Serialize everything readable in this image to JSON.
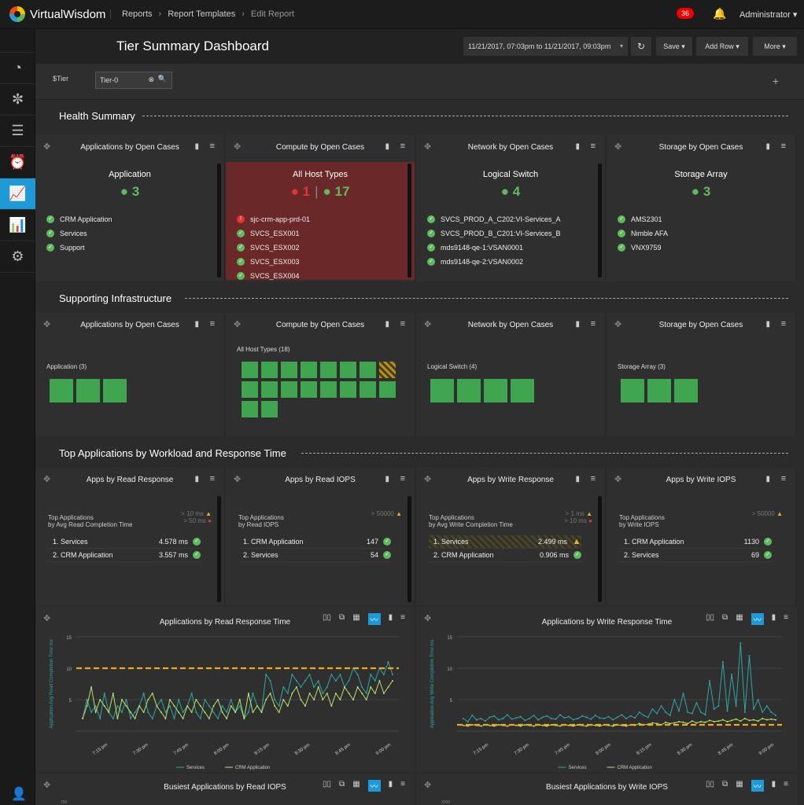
{
  "topbar": {
    "brand": "VirtualWisdom",
    "crumbs": [
      "Reports",
      "Report Templates",
      "Edit Report"
    ],
    "alerts": "36",
    "user": "Administrator"
  },
  "header": {
    "title": "Tier Summary Dashboard",
    "date_range": "11/21/2017, 07:03pm to 11/21/2017, 09:03pm",
    "save": "Save",
    "add_row": "Add Row",
    "more": "More"
  },
  "filter": {
    "label": "$Tier",
    "value": "Tier-0"
  },
  "sections": {
    "health": "Health Summary",
    "infra": "Supporting Infrastructure",
    "top": "Top Applications by Workload and Response Time"
  },
  "health_panels": [
    {
      "title": "Applications by Open Cases",
      "head": "Application",
      "ok": "3",
      "err": "",
      "items": [
        "CRM Application",
        "Services",
        "Support"
      ],
      "item_err": [
        false,
        false,
        false
      ]
    },
    {
      "title": "Compute by Open Cases",
      "head": "All Host Types",
      "ok": "17",
      "err": "1",
      "items": [
        "sjc-crm-app-prd-01",
        "SVCS_ESX001",
        "SVCS_ESX002",
        "SVCS_ESX003",
        "SVCS_ESX004"
      ],
      "item_err": [
        true,
        false,
        false,
        false,
        false
      ]
    },
    {
      "title": "Network by Open Cases",
      "head": "Logical Switch",
      "ok": "4",
      "err": "",
      "items": [
        "SVCS_PROD_A_C202:VI-Services_A",
        "SVCS_PROD_B_C201:VI-Services_B",
        "mds9148-qe-1:VSAN0001",
        "mds9148-qe-2:VSAN0002"
      ],
      "item_err": [
        false,
        false,
        false,
        false
      ]
    },
    {
      "title": "Storage by Open Cases",
      "head": "Storage Array",
      "ok": "3",
      "err": "",
      "items": [
        "AMS2301",
        "Nimble AFA",
        "VNX9759"
      ],
      "item_err": [
        false,
        false,
        false
      ]
    }
  ],
  "infra_panels": [
    {
      "title": "Applications by Open Cases",
      "label": "Application (3)",
      "tiles": 3,
      "warn": -1
    },
    {
      "title": "Compute by Open Cases",
      "label": "All Host Types (18)",
      "tiles": 18,
      "warn": 7
    },
    {
      "title": "Network by Open Cases",
      "label": "Logical Switch (4)",
      "tiles": 4,
      "warn": -1
    },
    {
      "title": "Storage by Open Cases",
      "label": "Storage Array (3)",
      "tiles": 3,
      "warn": -1
    }
  ],
  "top_panels": [
    {
      "title": "Apps by Read Response",
      "head1": "Top Applications",
      "head2": "by Avg Read Completion Time",
      "t1": "> 10 ms",
      "t2": "> 50 ms",
      "rows": [
        {
          "name": "1. Services",
          "val": "4.578 ms",
          "warn": false
        },
        {
          "name": "2. CRM Application",
          "val": "3.557 ms",
          "warn": false
        }
      ]
    },
    {
      "title": "Apps by Read IOPS",
      "head1": "Top Applications",
      "head2": "by Read IOPS",
      "t1": "> 50000",
      "t2": "",
      "rows": [
        {
          "name": "1. CRM Application",
          "val": "147",
          "warn": false
        },
        {
          "name": "2. Services",
          "val": "54",
          "warn": false
        }
      ]
    },
    {
      "title": "Apps by Write Response",
      "head1": "Top Applications",
      "head2": "by Avg Write Completion Time",
      "t1": "> 1 ms",
      "t2": "> 10 ms",
      "rows": [
        {
          "name": "1. Services",
          "val": "2.499 ms",
          "warn": true
        },
        {
          "name": "2. CRM Application",
          "val": "0.906 ms",
          "warn": false
        }
      ]
    },
    {
      "title": "Apps by Write IOPS",
      "head1": "Top Applications",
      "head2": "by Write IOPS",
      "t1": "> 50000",
      "t2": "",
      "rows": [
        {
          "name": "1. CRM Application",
          "val": "1130",
          "warn": false
        },
        {
          "name": "2. Services",
          "val": "69",
          "warn": false
        }
      ]
    }
  ],
  "bottom": {
    "read_iops_title": "Busiest Applications by Read IOPS",
    "write_iops_title": "Busiest Applications by Write IOPS",
    "read_iops_tick": "750",
    "write_iops_tick": "2000"
  },
  "chart_data": [
    {
      "type": "line",
      "title": "Applications by Read Response Time",
      "ylabel": "Application Avg Read Completion Time ms",
      "ylim": [
        0,
        15
      ],
      "yticks": [
        5,
        10,
        15
      ],
      "xticks": [
        "7:15 pm",
        "7:30 pm",
        "7:45 pm",
        "8:00 pm",
        "8:15 pm",
        "8:30 pm",
        "8:45 pm",
        "9:00 pm"
      ],
      "threshold": 10,
      "legend": "bottom",
      "series": [
        {
          "name": "Services",
          "color": "#2fa6a6",
          "values": [
            2,
            5,
            3,
            4,
            2,
            6,
            3,
            2,
            4,
            3,
            5,
            2,
            3,
            4,
            6,
            3,
            2,
            4,
            5,
            3,
            4,
            2,
            5,
            3,
            4,
            6,
            3,
            2,
            5,
            4,
            3,
            2,
            4,
            3,
            5,
            3,
            4,
            2,
            3,
            6,
            4,
            3,
            9,
            8,
            5,
            4,
            7,
            6,
            9,
            8,
            7,
            8,
            9,
            7,
            8,
            6,
            7,
            9,
            8,
            9,
            7,
            8,
            10,
            9,
            7,
            6,
            9,
            8,
            10,
            9,
            11,
            9
          ]
        },
        {
          "name": "CRM Application",
          "color": "#b9e36b",
          "values": [
            2,
            4,
            7,
            3,
            5,
            4,
            3,
            6,
            2,
            5,
            4,
            3,
            2,
            4,
            3,
            5,
            6,
            4,
            3,
            2,
            5,
            4,
            3,
            2,
            4,
            3,
            5,
            4,
            3,
            2,
            4,
            5,
            3,
            2,
            4,
            3,
            5,
            2,
            6,
            3,
            4,
            3,
            5,
            6,
            4,
            3,
            5,
            4,
            6,
            7,
            5,
            4,
            6,
            5,
            7,
            5,
            6,
            4,
            6,
            5,
            7,
            6,
            5,
            7,
            6,
            5,
            7,
            6,
            8,
            6,
            7,
            8
          ]
        }
      ]
    },
    {
      "type": "line",
      "title": "Applications by Write Response Time",
      "ylabel": "Application Avg Write Completion Time ms",
      "ylim": [
        0,
        15
      ],
      "yticks": [
        5,
        10,
        15
      ],
      "xticks": [
        "7:15 pm",
        "7:30 pm",
        "7:45 pm",
        "8:00 pm",
        "8:15 pm",
        "8:30 pm",
        "8:45 pm",
        "9:00 pm"
      ],
      "threshold": 1,
      "legend": "bottom",
      "series": [
        {
          "name": "Services",
          "color": "#2fa6a6",
          "values": [
            2,
            1.5,
            2.5,
            1.8,
            2,
            1.6,
            2.2,
            2.4,
            1.8,
            2,
            2.6,
            1.9,
            2.1,
            2.3,
            1.7,
            2,
            2.5,
            1.8,
            2.2,
            2.4,
            2,
            1.9,
            2.6,
            2.1,
            2.3,
            1.8,
            2,
            2.4,
            2.2,
            1.9,
            2.5,
            2.1,
            2,
            2.3,
            1.8,
            2.2,
            2.6,
            2,
            2.4,
            2.1,
            3,
            2.5,
            2.2,
            3.5,
            2.8,
            4,
            3,
            2.5,
            5,
            3.2,
            6,
            3,
            2.8,
            4.5,
            3,
            2.6,
            8,
            3.5,
            4,
            11,
            3.2,
            9,
            4,
            14,
            3,
            12,
            3.5,
            5,
            3,
            4,
            3,
            2.5
          ]
        },
        {
          "name": "CRM Application",
          "color": "#b9e36b",
          "values": [
            0.9,
            0.8,
            1,
            0.9,
            0.8,
            1,
            0.9,
            0.8,
            1,
            0.9,
            0.8,
            1,
            0.9,
            0.8,
            1,
            0.9,
            0.8,
            1,
            0.9,
            0.8,
            1,
            0.9,
            0.8,
            1,
            0.9,
            0.8,
            1,
            0.9,
            0.8,
            1,
            0.9,
            0.8,
            1,
            0.9,
            0.8,
            1,
            0.9,
            0.8,
            1,
            0.9,
            1.2,
            1,
            1.1,
            1.3,
            1.2,
            1,
            1.4,
            1.2,
            1.3,
            1.5,
            1.4,
            1.2,
            1.6,
            1.3,
            1.5,
            1.4,
            1.7,
            1.5,
            1.6,
            1.8,
            1.5,
            1.7,
            1.9,
            1.6,
            2,
            1.7,
            1.8,
            1.6,
            2,
            1.8,
            1.9,
            1.8
          ]
        }
      ]
    }
  ]
}
